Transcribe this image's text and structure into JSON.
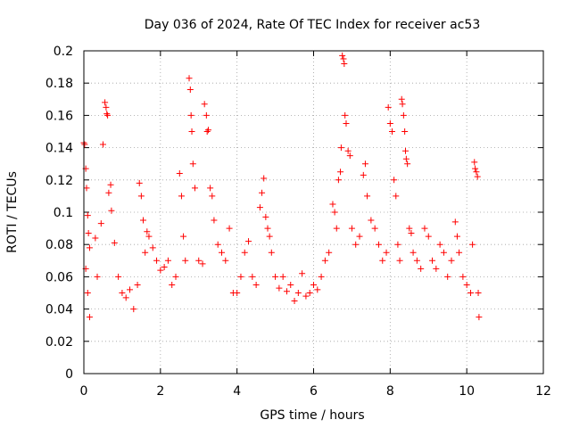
{
  "chart_data": {
    "type": "scatter",
    "title": "Day 036 of 2024, Rate Of TEC Index for receiver ac53",
    "xlabel": "GPS time / hours",
    "ylabel": "ROTI / TECUs",
    "xlim": [
      0,
      12
    ],
    "ylim": [
      0,
      0.2
    ],
    "x_ticks": [
      0,
      2,
      4,
      6,
      8,
      10,
      12
    ],
    "y_ticks": [
      0,
      0.02,
      0.04,
      0.06,
      0.08,
      0.1,
      0.12,
      0.14,
      0.16,
      0.18,
      0.2
    ],
    "grid": true,
    "marker": "+",
    "color": "#ff0000",
    "series": [
      {
        "name": "ROTI",
        "points": [
          [
            0.0,
            0.143
          ],
          [
            0.02,
            0.142
          ],
          [
            0.05,
            0.127
          ],
          [
            0.07,
            0.115
          ],
          [
            0.1,
            0.098
          ],
          [
            0.12,
            0.087
          ],
          [
            0.15,
            0.078
          ],
          [
            0.05,
            0.065
          ],
          [
            0.1,
            0.05
          ],
          [
            0.15,
            0.035
          ],
          [
            0.3,
            0.084
          ],
          [
            0.35,
            0.06
          ],
          [
            0.45,
            0.093
          ],
          [
            0.5,
            0.142
          ],
          [
            0.55,
            0.168
          ],
          [
            0.58,
            0.165
          ],
          [
            0.6,
            0.161
          ],
          [
            0.62,
            0.16
          ],
          [
            0.65,
            0.112
          ],
          [
            0.7,
            0.117
          ],
          [
            0.72,
            0.101
          ],
          [
            0.8,
            0.081
          ],
          [
            0.9,
            0.06
          ],
          [
            1.0,
            0.05
          ],
          [
            1.1,
            0.047
          ],
          [
            1.2,
            0.052
          ],
          [
            1.3,
            0.04
          ],
          [
            1.4,
            0.055
          ],
          [
            1.45,
            0.118
          ],
          [
            1.5,
            0.11
          ],
          [
            1.55,
            0.095
          ],
          [
            1.6,
            0.075
          ],
          [
            1.65,
            0.088
          ],
          [
            1.7,
            0.085
          ],
          [
            1.8,
            0.078
          ],
          [
            1.9,
            0.07
          ],
          [
            2.0,
            0.064
          ],
          [
            2.1,
            0.066
          ],
          [
            2.2,
            0.07
          ],
          [
            2.3,
            0.055
          ],
          [
            2.4,
            0.06
          ],
          [
            2.5,
            0.124
          ],
          [
            2.55,
            0.11
          ],
          [
            2.6,
            0.085
          ],
          [
            2.65,
            0.07
          ],
          [
            2.75,
            0.183
          ],
          [
            2.78,
            0.176
          ],
          [
            2.8,
            0.16
          ],
          [
            2.82,
            0.15
          ],
          [
            2.85,
            0.13
          ],
          [
            2.9,
            0.115
          ],
          [
            3.0,
            0.07
          ],
          [
            3.1,
            0.068
          ],
          [
            3.15,
            0.167
          ],
          [
            3.2,
            0.16
          ],
          [
            3.22,
            0.15
          ],
          [
            3.25,
            0.151
          ],
          [
            3.3,
            0.115
          ],
          [
            3.35,
            0.11
          ],
          [
            3.4,
            0.095
          ],
          [
            3.5,
            0.08
          ],
          [
            3.6,
            0.075
          ],
          [
            3.7,
            0.07
          ],
          [
            3.8,
            0.09
          ],
          [
            3.9,
            0.05
          ],
          [
            4.0,
            0.05
          ],
          [
            4.1,
            0.06
          ],
          [
            4.2,
            0.075
          ],
          [
            4.3,
            0.082
          ],
          [
            4.4,
            0.06
          ],
          [
            4.5,
            0.055
          ],
          [
            4.6,
            0.103
          ],
          [
            4.65,
            0.112
          ],
          [
            4.7,
            0.121
          ],
          [
            4.75,
            0.097
          ],
          [
            4.8,
            0.09
          ],
          [
            4.85,
            0.085
          ],
          [
            4.9,
            0.075
          ],
          [
            5.0,
            0.06
          ],
          [
            5.1,
            0.053
          ],
          [
            5.2,
            0.06
          ],
          [
            5.3,
            0.051
          ],
          [
            5.4,
            0.055
          ],
          [
            5.5,
            0.045
          ],
          [
            5.6,
            0.05
          ],
          [
            5.7,
            0.062
          ],
          [
            5.8,
            0.048
          ],
          [
            5.9,
            0.05
          ],
          [
            6.0,
            0.055
          ],
          [
            6.1,
            0.052
          ],
          [
            6.2,
            0.06
          ],
          [
            6.3,
            0.07
          ],
          [
            6.4,
            0.075
          ],
          [
            6.5,
            0.105
          ],
          [
            6.55,
            0.1
          ],
          [
            6.6,
            0.09
          ],
          [
            6.65,
            0.12
          ],
          [
            6.7,
            0.125
          ],
          [
            6.72,
            0.14
          ],
          [
            6.75,
            0.197
          ],
          [
            6.78,
            0.195
          ],
          [
            6.8,
            0.192
          ],
          [
            6.82,
            0.16
          ],
          [
            6.85,
            0.155
          ],
          [
            6.9,
            0.138
          ],
          [
            6.95,
            0.135
          ],
          [
            7.0,
            0.09
          ],
          [
            7.1,
            0.08
          ],
          [
            7.2,
            0.085
          ],
          [
            7.3,
            0.123
          ],
          [
            7.35,
            0.13
          ],
          [
            7.4,
            0.11
          ],
          [
            7.5,
            0.095
          ],
          [
            7.6,
            0.09
          ],
          [
            7.7,
            0.08
          ],
          [
            7.8,
            0.07
          ],
          [
            7.9,
            0.075
          ],
          [
            7.95,
            0.165
          ],
          [
            8.0,
            0.155
          ],
          [
            8.05,
            0.15
          ],
          [
            8.1,
            0.12
          ],
          [
            8.15,
            0.11
          ],
          [
            8.2,
            0.08
          ],
          [
            8.25,
            0.07
          ],
          [
            8.3,
            0.17
          ],
          [
            8.32,
            0.167
          ],
          [
            8.35,
            0.16
          ],
          [
            8.38,
            0.15
          ],
          [
            8.4,
            0.138
          ],
          [
            8.42,
            0.133
          ],
          [
            8.45,
            0.13
          ],
          [
            8.5,
            0.09
          ],
          [
            8.55,
            0.087
          ],
          [
            8.6,
            0.075
          ],
          [
            8.7,
            0.07
          ],
          [
            8.8,
            0.065
          ],
          [
            8.9,
            0.09
          ],
          [
            9.0,
            0.085
          ],
          [
            9.1,
            0.07
          ],
          [
            9.2,
            0.065
          ],
          [
            9.3,
            0.08
          ],
          [
            9.4,
            0.075
          ],
          [
            9.5,
            0.06
          ],
          [
            9.6,
            0.07
          ],
          [
            9.7,
            0.094
          ],
          [
            9.75,
            0.085
          ],
          [
            9.8,
            0.075
          ],
          [
            9.9,
            0.06
          ],
          [
            10.0,
            0.055
          ],
          [
            10.1,
            0.05
          ],
          [
            10.15,
            0.08
          ],
          [
            10.2,
            0.131
          ],
          [
            10.22,
            0.127
          ],
          [
            10.25,
            0.125
          ],
          [
            10.28,
            0.122
          ],
          [
            10.3,
            0.05
          ],
          [
            10.32,
            0.035
          ]
        ]
      }
    ]
  }
}
